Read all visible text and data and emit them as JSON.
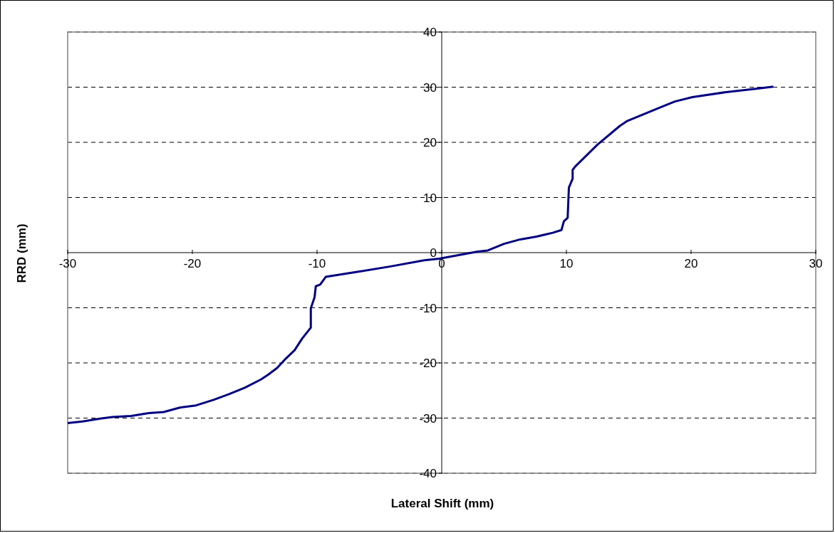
{
  "chart_data": {
    "type": "line",
    "xlabel": "Lateral Shift (mm)",
    "ylabel": "RRD (mm)",
    "xlim": [
      -30,
      30
    ],
    "xticks": [
      -30,
      -20,
      -10,
      0,
      10,
      20,
      30
    ],
    "ylim": [
      -40,
      40
    ],
    "yticks": [
      -40,
      -30,
      -20,
      -10,
      0,
      10,
      20,
      30,
      40
    ],
    "grid": "y",
    "marker": "none",
    "line_style": "solid",
    "series": [
      {
        "color": "#000080",
        "x": [
          -30,
          -28.8,
          -27.4,
          -26.4,
          -24.9,
          -23.5,
          -22.3,
          -21,
          -19.7,
          -18.3,
          -17.1,
          -15.8,
          -14.5,
          -13.9,
          -13.2,
          -12.5,
          -11.8,
          -11.2,
          -10.5,
          -10.5,
          -10.2,
          -10.1,
          -9.75,
          -9.3,
          -6.5,
          -4.1,
          -1.4,
          -0.2,
          2.9,
          3.7,
          5,
          6.3,
          7.6,
          8.9,
          9.6,
          9.8,
          10.1,
          10.2,
          10.5,
          10.5,
          10.7,
          12.5,
          14.3,
          14.9,
          17.5,
          18.7,
          20.1,
          22.8,
          25.2,
          26.6
        ],
        "values": [
          -30.9,
          -30.6,
          -30.1,
          -29.8,
          -29.6,
          -29.1,
          -28.9,
          -28.1,
          -27.7,
          -26.7,
          -25.7,
          -24.5,
          -23,
          -22.1,
          -20.9,
          -19.2,
          -17.7,
          -15.6,
          -13.6,
          -10.1,
          -8.1,
          -6.1,
          -5.8,
          -4.4,
          -3.4,
          -2.5,
          -1.4,
          -1.1,
          0.2,
          0.4,
          1.6,
          2.4,
          2.9,
          3.6,
          4.1,
          5.7,
          6.3,
          11.8,
          13.4,
          15,
          15.6,
          19.6,
          23,
          23.9,
          26.3,
          27.4,
          28.2,
          29.1,
          29.7,
          30.1
        ]
      }
    ]
  }
}
